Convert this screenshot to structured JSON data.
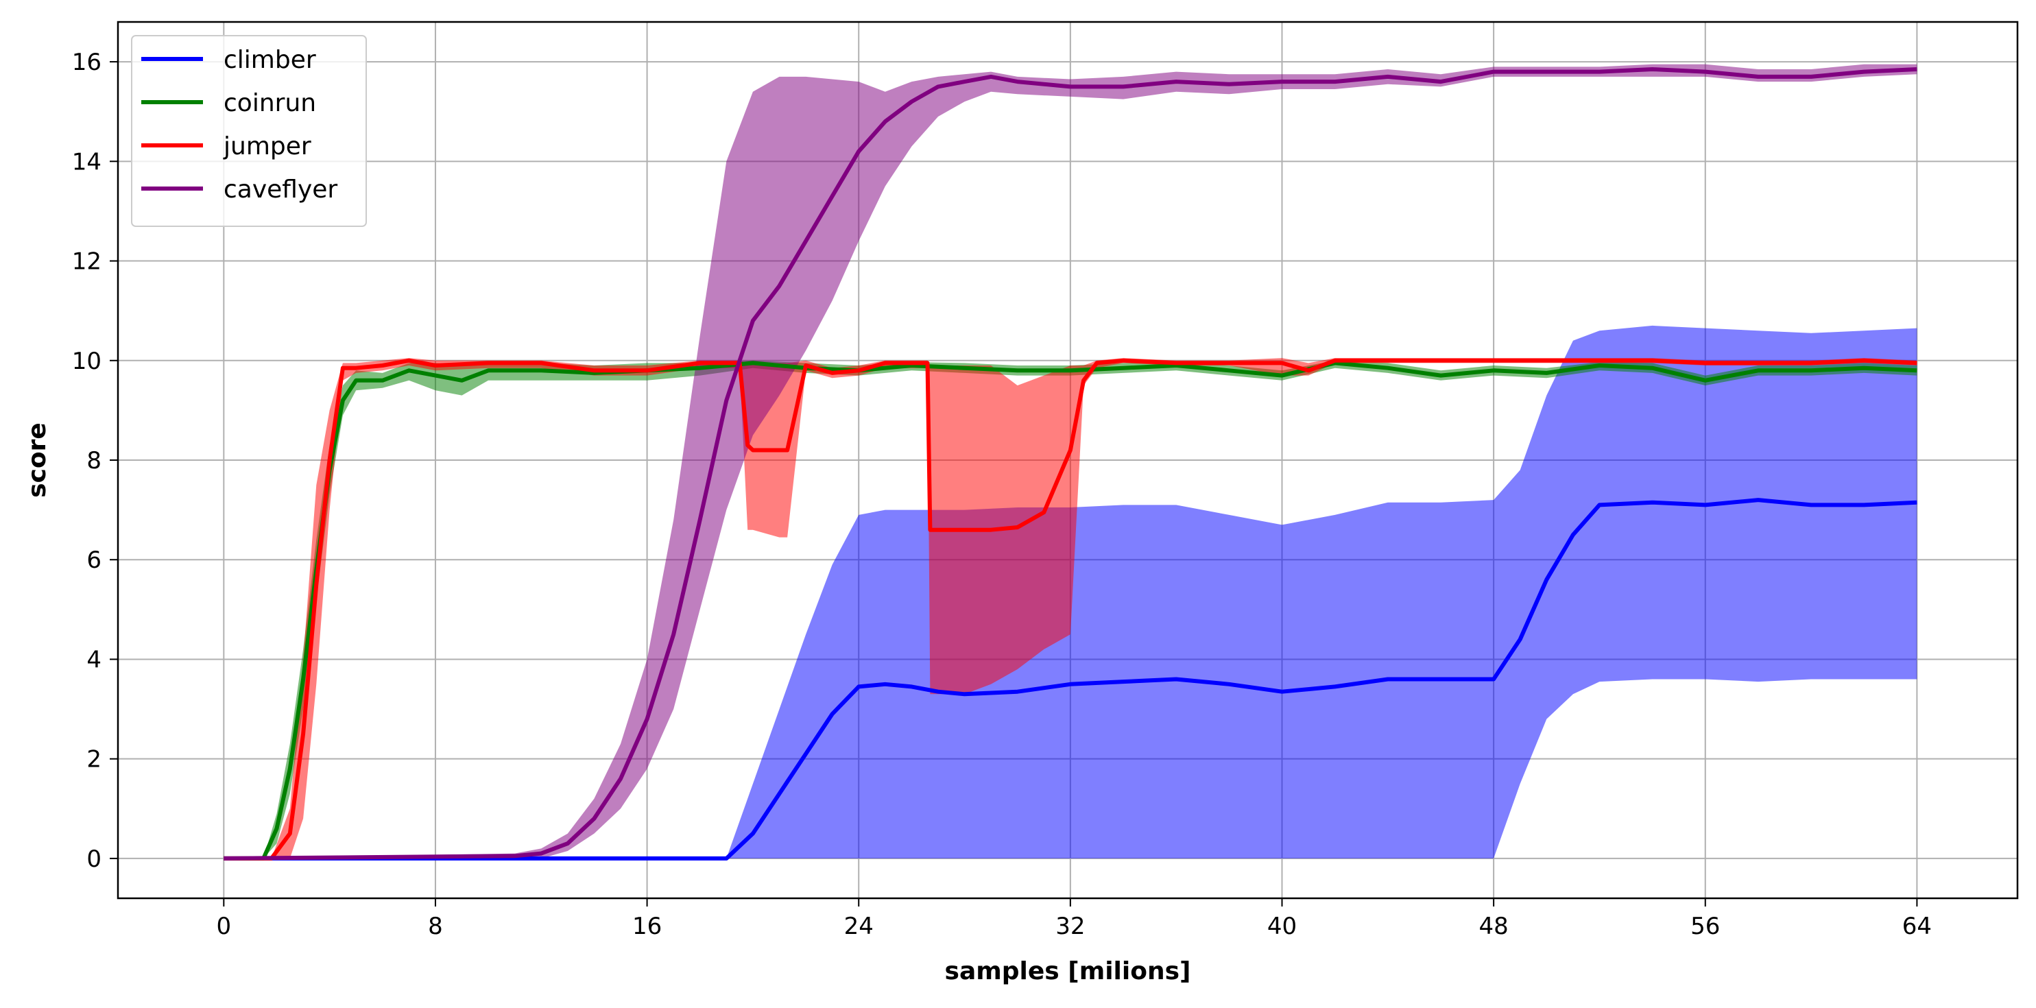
{
  "chart_data": {
    "type": "line",
    "title": "",
    "xlabel": "samples [milions]",
    "ylabel": "score",
    "xlim": [
      -4,
      67.8
    ],
    "ylim": [
      -0.8,
      16.8
    ],
    "xticks": [
      0,
      8,
      16,
      24,
      32,
      40,
      48,
      56,
      64
    ],
    "yticks": [
      0,
      2,
      4,
      6,
      8,
      10,
      12,
      14,
      16
    ],
    "grid": true,
    "legend_position": "upper-left",
    "series": [
      {
        "name": "climber",
        "color": "#0000ff",
        "x": [
          0,
          18,
          19,
          20,
          21,
          22,
          23,
          24,
          25,
          26,
          27,
          28,
          30,
          32,
          34,
          36,
          38,
          40,
          42,
          44,
          46,
          48,
          49,
          50,
          51,
          52,
          54,
          56,
          58,
          60,
          62,
          64
        ],
        "y": [
          0,
          0,
          0,
          0.5,
          1.3,
          2.1,
          2.9,
          3.45,
          3.5,
          3.45,
          3.35,
          3.3,
          3.35,
          3.5,
          3.55,
          3.6,
          3.5,
          3.35,
          3.45,
          3.6,
          3.6,
          3.6,
          4.4,
          5.6,
          6.5,
          7.1,
          7.15,
          7.1,
          7.2,
          7.1,
          7.1,
          7.15
        ],
        "lower": [
          0,
          0,
          0,
          0,
          0,
          0,
          0,
          0,
          0,
          0,
          0,
          0,
          0,
          0,
          0,
          0,
          0,
          0,
          0,
          0,
          0,
          0,
          1.5,
          2.8,
          3.3,
          3.55,
          3.6,
          3.6,
          3.55,
          3.6,
          3.6,
          3.6
        ],
        "upper": [
          0,
          0,
          0,
          1.5,
          3.0,
          4.5,
          5.9,
          6.9,
          7.0,
          7.0,
          7.0,
          7.0,
          7.05,
          7.05,
          7.1,
          7.1,
          6.9,
          6.7,
          6.9,
          7.15,
          7.15,
          7.2,
          7.8,
          9.3,
          10.4,
          10.6,
          10.7,
          10.65,
          10.6,
          10.55,
          10.6,
          10.65
        ]
      },
      {
        "name": "coinrun",
        "color": "#008000",
        "x": [
          0,
          1.5,
          2,
          2.5,
          3,
          3.5,
          4,
          4.5,
          5,
          6,
          7,
          8,
          9,
          10,
          12,
          14,
          16,
          18,
          20,
          22,
          24,
          26,
          28,
          30,
          32,
          34,
          36,
          38,
          40,
          42,
          44,
          46,
          48,
          50,
          52,
          54,
          56,
          58,
          60,
          62,
          64
        ],
        "y": [
          0,
          0,
          0.6,
          1.8,
          3.6,
          5.8,
          7.8,
          9.2,
          9.6,
          9.6,
          9.8,
          9.7,
          9.6,
          9.8,
          9.8,
          9.75,
          9.8,
          9.85,
          9.95,
          9.85,
          9.8,
          9.9,
          9.85,
          9.8,
          9.8,
          9.85,
          9.9,
          9.8,
          9.7,
          9.95,
          9.85,
          9.7,
          9.8,
          9.75,
          9.9,
          9.85,
          9.6,
          9.8,
          9.8,
          9.85,
          9.8
        ],
        "lower": [
          0,
          0,
          0.3,
          1.3,
          3.0,
          5.2,
          7.3,
          8.9,
          9.4,
          9.45,
          9.6,
          9.4,
          9.3,
          9.6,
          9.6,
          9.6,
          9.6,
          9.7,
          9.85,
          9.75,
          9.7,
          9.8,
          9.75,
          9.7,
          9.7,
          9.75,
          9.8,
          9.7,
          9.6,
          9.85,
          9.75,
          9.6,
          9.7,
          9.65,
          9.8,
          9.75,
          9.5,
          9.7,
          9.7,
          9.75,
          9.7
        ],
        "upper": [
          0,
          0,
          0.9,
          2.3,
          4.2,
          6.4,
          8.3,
          9.5,
          9.8,
          9.75,
          9.95,
          9.95,
          9.9,
          9.95,
          9.95,
          9.9,
          9.95,
          9.95,
          10.0,
          9.95,
          9.9,
          9.97,
          9.95,
          9.9,
          9.9,
          9.95,
          9.97,
          9.9,
          9.8,
          10.0,
          9.95,
          9.8,
          9.9,
          9.85,
          9.97,
          9.95,
          9.7,
          9.9,
          9.9,
          9.95,
          9.9
        ]
      },
      {
        "name": "jumper",
        "color": "#ff0000",
        "x": [
          0,
          1.8,
          2.5,
          3,
          3.5,
          4,
          4.5,
          5,
          6,
          7,
          8,
          10,
          12,
          14,
          16,
          18,
          19.5,
          19.8,
          20,
          21,
          21.3,
          22,
          23,
          24,
          25,
          26,
          26.6,
          26.7,
          27,
          28,
          29,
          30,
          31,
          32,
          32.5,
          33,
          34,
          36,
          38,
          40,
          41,
          42,
          44,
          46,
          48,
          50,
          52,
          54,
          56,
          58,
          60,
          62,
          64
        ],
        "y": [
          0,
          0,
          0.5,
          2.5,
          5.5,
          8.0,
          9.85,
          9.85,
          9.9,
          10.0,
          9.9,
          9.95,
          9.95,
          9.8,
          9.8,
          9.95,
          9.95,
          8.3,
          8.2,
          8.2,
          8.2,
          9.9,
          9.75,
          9.8,
          9.95,
          9.95,
          9.95,
          6.6,
          6.6,
          6.6,
          6.6,
          6.65,
          6.95,
          8.2,
          9.6,
          9.95,
          10.0,
          9.95,
          9.95,
          9.95,
          9.8,
          10.0,
          10.0,
          10.0,
          10.0,
          10.0,
          10.0,
          10.0,
          9.95,
          9.95,
          9.95,
          10.0,
          9.95
        ],
        "lower": [
          0,
          0,
          0,
          0.8,
          3.5,
          7.0,
          9.6,
          9.75,
          9.8,
          9.9,
          9.8,
          9.85,
          9.85,
          9.7,
          9.7,
          9.85,
          9.85,
          6.6,
          6.6,
          6.45,
          6.45,
          9.8,
          9.65,
          9.7,
          9.85,
          9.85,
          9.85,
          3.3,
          3.3,
          3.3,
          3.5,
          3.8,
          4.2,
          4.5,
          9.5,
          9.85,
          9.95,
          9.9,
          9.9,
          9.7,
          9.7,
          9.95,
          9.95,
          9.95,
          9.95,
          9.95,
          9.95,
          9.95,
          9.9,
          9.9,
          9.9,
          9.95,
          9.9
        ],
        "upper": [
          0,
          0,
          1.0,
          4.0,
          7.5,
          9.0,
          9.95,
          9.95,
          10.0,
          10.05,
          10.0,
          10.0,
          10.0,
          9.9,
          9.9,
          10.0,
          10.0,
          9.95,
          9.95,
          9.95,
          9.95,
          10.0,
          9.85,
          9.9,
          10.0,
          10.0,
          10.0,
          9.9,
          9.9,
          9.9,
          9.9,
          9.5,
          9.7,
          9.9,
          9.9,
          10.0,
          10.05,
          10.0,
          10.0,
          10.05,
          9.95,
          10.05,
          10.05,
          10.05,
          10.05,
          10.05,
          10.05,
          10.05,
          10.0,
          10.0,
          10.0,
          10.05,
          10.0
        ]
      },
      {
        "name": "caveflyer",
        "color": "#800080",
        "x": [
          0,
          11,
          12,
          13,
          14,
          15,
          16,
          17,
          18,
          19,
          20,
          21,
          22,
          23,
          24,
          25,
          26,
          27,
          28,
          29,
          30,
          32,
          34,
          36,
          38,
          40,
          42,
          44,
          46,
          48,
          50,
          52,
          54,
          56,
          58,
          60,
          62,
          64
        ],
        "y": [
          0,
          0.05,
          0.1,
          0.3,
          0.8,
          1.6,
          2.8,
          4.5,
          6.8,
          9.2,
          10.8,
          11.5,
          12.4,
          13.3,
          14.2,
          14.8,
          15.2,
          15.5,
          15.6,
          15.7,
          15.6,
          15.5,
          15.5,
          15.6,
          15.55,
          15.6,
          15.6,
          15.7,
          15.6,
          15.8,
          15.8,
          15.8,
          15.85,
          15.8,
          15.7,
          15.7,
          15.8,
          15.85
        ],
        "lower": [
          0,
          0,
          0,
          0.15,
          0.5,
          1.0,
          1.8,
          3.0,
          5.0,
          7.0,
          8.5,
          9.3,
          10.2,
          11.2,
          12.4,
          13.5,
          14.3,
          14.9,
          15.2,
          15.4,
          15.35,
          15.3,
          15.25,
          15.4,
          15.35,
          15.45,
          15.45,
          15.55,
          15.5,
          15.7,
          15.7,
          15.7,
          15.7,
          15.7,
          15.6,
          15.6,
          15.7,
          15.75
        ],
        "upper": [
          0,
          0.1,
          0.2,
          0.5,
          1.2,
          2.3,
          4.0,
          6.8,
          10.5,
          14.0,
          15.4,
          15.7,
          15.7,
          15.65,
          15.6,
          15.4,
          15.6,
          15.7,
          15.75,
          15.8,
          15.7,
          15.65,
          15.7,
          15.8,
          15.75,
          15.75,
          15.75,
          15.85,
          15.75,
          15.9,
          15.9,
          15.9,
          15.95,
          15.95,
          15.85,
          15.85,
          15.95,
          15.95
        ]
      }
    ]
  }
}
